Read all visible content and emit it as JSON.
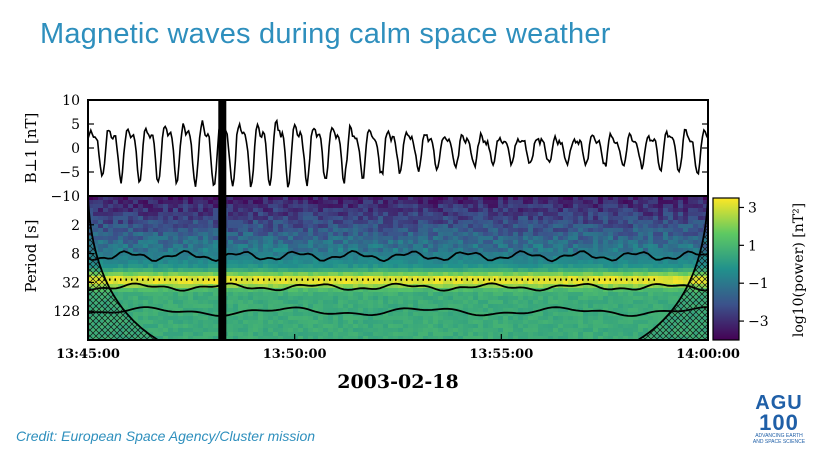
{
  "slide": {
    "title": "Magnetic waves during calm space weather",
    "credit": "Credit: European Space Agency/Cluster mission"
  },
  "logo": {
    "line1": "AGU",
    "line2": "100",
    "line3": "ADVANCING EARTH",
    "line4": "AND SPACE SCIENCE",
    "color": "#1f5fa7"
  },
  "chart_data": [
    {
      "type": "line",
      "ylabel": "B⊥1 [nT]",
      "ylim": [
        -10,
        10
      ],
      "yticks": [
        10,
        5,
        0,
        -5,
        -10
      ],
      "x_range": [
        "13:45:00",
        "14:00:00"
      ],
      "x_values_note": "",
      "oscillation_period_s": 27,
      "amplitude_nT": 6,
      "marker_time": "13:48:15",
      "line_color": "#000000"
    },
    {
      "type": "heatmap",
      "ylabel": "Period [s]",
      "yscale": "log",
      "yticks": [
        2,
        8,
        32,
        128
      ],
      "ylim_s": [
        0.5,
        512
      ],
      "xlabel": "2003-02-18",
      "xticks": [
        "13:45:00",
        "13:50:00",
        "13:55:00",
        "14:00:00"
      ],
      "dominant_period_s": 28,
      "colorbar": {
        "label": "log10(power) [nT²]",
        "ticks": [
          3,
          1,
          -1,
          -3
        ],
        "range": [
          -4,
          3.5
        ],
        "colors": [
          "#440154",
          "#3b528b",
          "#21918c",
          "#5ec962",
          "#fde725"
        ]
      },
      "marker_time": "13:48:15"
    }
  ]
}
